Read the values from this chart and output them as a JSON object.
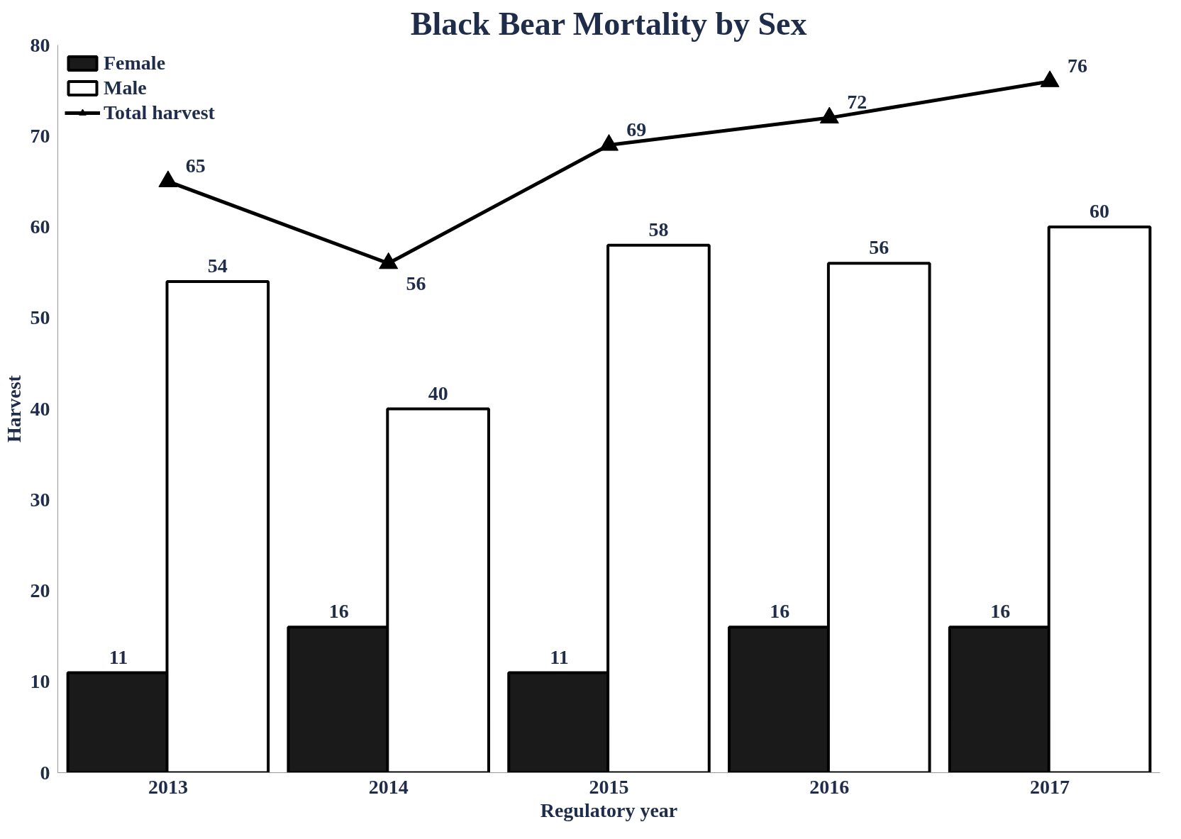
{
  "chart_data": {
    "type": "bar",
    "title": "Black Bear Mortality by Sex",
    "xlabel": "Regulatory year",
    "ylabel": "Harvest",
    "categories": [
      "2013",
      "2014",
      "2015",
      "2016",
      "2017"
    ],
    "series": [
      {
        "name": "Female",
        "color": "#1a1a1a",
        "values": [
          11,
          16,
          11,
          16,
          16
        ]
      },
      {
        "name": "Male",
        "color": "#ffffff",
        "values": [
          54,
          40,
          58,
          56,
          60
        ]
      },
      {
        "name": "Total harvest",
        "type": "line",
        "color": "#000000",
        "marker": "triangle",
        "values": [
          65,
          56,
          69,
          72,
          76
        ]
      }
    ],
    "ylim": [
      0,
      80
    ],
    "yticks": [
      0,
      10,
      20,
      30,
      40,
      50,
      60,
      70,
      80
    ],
    "grid": false,
    "legend": "top left",
    "data_labels": true
  }
}
